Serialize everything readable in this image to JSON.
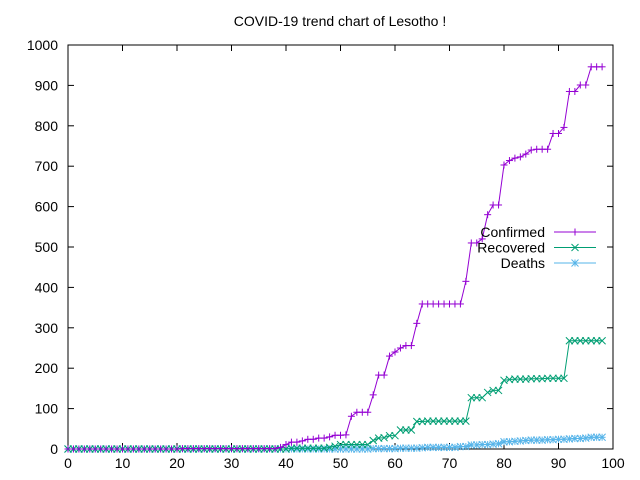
{
  "chart_data": {
    "type": "line",
    "title": "COVID-19 trend chart of Lesotho !",
    "xlabel": "",
    "ylabel": "",
    "xlim": [
      0,
      100
    ],
    "ylim": [
      0,
      1000
    ],
    "xticks": [
      0,
      10,
      20,
      30,
      40,
      50,
      60,
      70,
      80,
      90,
      100
    ],
    "yticks": [
      0,
      100,
      200,
      300,
      400,
      500,
      600,
      700,
      800,
      900,
      1000
    ],
    "grid": false,
    "legend_position": "right",
    "series": [
      {
        "name": "Confirmed",
        "color": "#9400d3",
        "marker": "plus",
        "x": [
          0,
          1,
          2,
          3,
          4,
          5,
          6,
          7,
          8,
          9,
          10,
          11,
          12,
          13,
          14,
          15,
          16,
          17,
          18,
          19,
          20,
          21,
          22,
          23,
          24,
          25,
          26,
          27,
          28,
          29,
          30,
          31,
          32,
          33,
          34,
          35,
          36,
          37,
          38,
          39,
          40,
          41,
          42,
          43,
          44,
          45,
          46,
          47,
          48,
          49,
          50,
          51,
          52,
          53,
          54,
          55,
          56,
          57,
          58,
          59,
          60,
          61,
          62,
          63,
          64,
          65,
          66,
          67,
          68,
          69,
          70,
          71,
          72,
          73,
          74,
          75,
          76,
          77,
          78,
          79,
          80,
          81,
          82,
          83,
          84,
          85,
          86,
          87,
          88,
          89,
          90,
          91,
          92,
          93,
          94,
          95,
          96,
          97,
          98
        ],
        "values": [
          0,
          0,
          0,
          0,
          0,
          0,
          0,
          0,
          0,
          0,
          0,
          0,
          0,
          0,
          0,
          0,
          0,
          0,
          0,
          0,
          0,
          1,
          1,
          1,
          1,
          1,
          1,
          1,
          1,
          1,
          1,
          1,
          1,
          1,
          1,
          1,
          1,
          1,
          1,
          4,
          11,
          17,
          17,
          20,
          24,
          24,
          27,
          27,
          30,
          34,
          34,
          35,
          81,
          91,
          91,
          91,
          134,
          183,
          183,
          230,
          240,
          250,
          256,
          256,
          311,
          359,
          359,
          359,
          359,
          359,
          359,
          359,
          359,
          415,
          510,
          510,
          520,
          580,
          604,
          604,
          703,
          714,
          720,
          723,
          730,
          740,
          742,
          742,
          742,
          781,
          781,
          796,
          885,
          885,
          901,
          901,
          946,
          946,
          946
        ]
      },
      {
        "name": "Recovered",
        "color": "#009e73",
        "marker": "cross",
        "x": [
          0,
          1,
          2,
          3,
          4,
          5,
          6,
          7,
          8,
          9,
          10,
          11,
          12,
          13,
          14,
          15,
          16,
          17,
          18,
          19,
          20,
          21,
          22,
          23,
          24,
          25,
          26,
          27,
          28,
          29,
          30,
          31,
          32,
          33,
          34,
          35,
          36,
          37,
          38,
          39,
          40,
          41,
          42,
          43,
          44,
          45,
          46,
          47,
          48,
          49,
          50,
          51,
          52,
          53,
          54,
          55,
          56,
          57,
          58,
          59,
          60,
          61,
          62,
          63,
          64,
          65,
          66,
          67,
          68,
          69,
          70,
          71,
          72,
          73,
          74,
          75,
          76,
          77,
          78,
          79,
          80,
          81,
          82,
          83,
          84,
          85,
          86,
          87,
          88,
          89,
          90,
          91,
          92,
          93,
          94,
          95,
          96,
          97,
          98
        ],
        "values": [
          0,
          0,
          0,
          0,
          0,
          0,
          0,
          0,
          0,
          0,
          0,
          0,
          0,
          0,
          0,
          0,
          0,
          0,
          0,
          0,
          0,
          0,
          0,
          0,
          0,
          0,
          0,
          0,
          0,
          0,
          0,
          0,
          0,
          0,
          0,
          0,
          0,
          0,
          0,
          0,
          0,
          2,
          2,
          2,
          2,
          2,
          2,
          2,
          4,
          7,
          11,
          11,
          11,
          11,
          11,
          11,
          21,
          27,
          28,
          33,
          33,
          47,
          47,
          47,
          68,
          68,
          69,
          69,
          69,
          69,
          69,
          69,
          69,
          69,
          127,
          127,
          127,
          140,
          145,
          145,
          170,
          172,
          173,
          173,
          173,
          174,
          174,
          174,
          175,
          175,
          175,
          175,
          268,
          268,
          268,
          268,
          268,
          268,
          268
        ]
      },
      {
        "name": "Deaths",
        "color": "#56b4e9",
        "marker": "asterisk",
        "x": [
          0,
          1,
          2,
          3,
          4,
          5,
          6,
          7,
          8,
          9,
          10,
          11,
          12,
          13,
          14,
          15,
          16,
          17,
          18,
          19,
          20,
          21,
          22,
          23,
          24,
          25,
          26,
          27,
          28,
          29,
          30,
          31,
          32,
          33,
          34,
          35,
          36,
          37,
          38,
          39,
          40,
          41,
          42,
          43,
          44,
          45,
          46,
          47,
          48,
          49,
          50,
          51,
          52,
          53,
          54,
          55,
          56,
          57,
          58,
          59,
          60,
          61,
          62,
          63,
          64,
          65,
          66,
          67,
          68,
          69,
          70,
          71,
          72,
          73,
          74,
          75,
          76,
          77,
          78,
          79,
          80,
          81,
          82,
          83,
          84,
          85,
          86,
          87,
          88,
          89,
          90,
          91,
          92,
          93,
          94,
          95,
          96,
          97,
          98
        ],
        "values": [
          0,
          0,
          0,
          0,
          0,
          0,
          0,
          0,
          0,
          0,
          0,
          0,
          0,
          0,
          0,
          0,
          0,
          0,
          0,
          0,
          0,
          0,
          0,
          0,
          0,
          0,
          0,
          0,
          0,
          0,
          0,
          0,
          0,
          0,
          0,
          0,
          0,
          0,
          0,
          0,
          0,
          0,
          0,
          0,
          0,
          0,
          0,
          0,
          0,
          0,
          0,
          0,
          0,
          0,
          0,
          0,
          1,
          1,
          1,
          1,
          1,
          2,
          2,
          2,
          2,
          3,
          4,
          4,
          4,
          4,
          4,
          4,
          6,
          6,
          10,
          10,
          11,
          11,
          12,
          13,
          18,
          18,
          19,
          20,
          21,
          22,
          22,
          22,
          23,
          23,
          24,
          24,
          25,
          26,
          26,
          27,
          29,
          29,
          29
        ]
      }
    ]
  }
}
